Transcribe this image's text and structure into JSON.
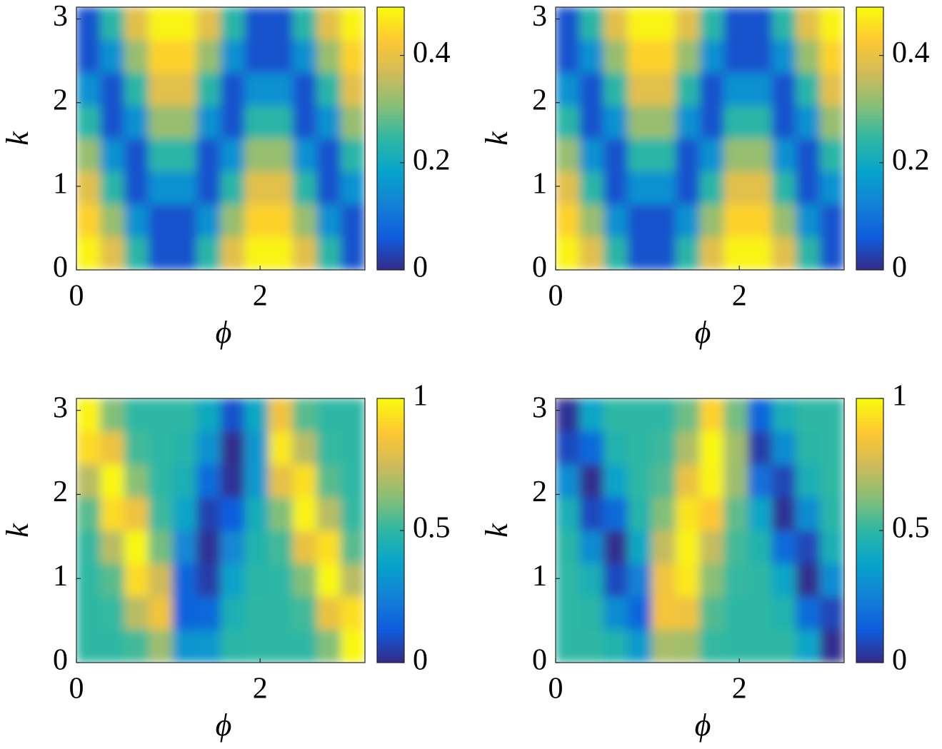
{
  "chart_data": [
    {
      "type": "heatmap",
      "xlabel": "ϕ",
      "ylabel": "k",
      "xlim": [
        0,
        3.1416
      ],
      "ylim": [
        0,
        3.1416
      ],
      "xticks": [
        0,
        2
      ],
      "yticks": [
        0,
        1,
        2,
        3
      ],
      "clim": [
        0,
        0.49
      ],
      "cticks": [
        0,
        0.2,
        0.4
      ],
      "colormap": [
        "#352a87",
        "#0f5cdd",
        "#1481d6",
        "#06a4ca",
        "#2eb7a4",
        "#87bf77",
        "#d1bb59",
        "#fec832",
        "#f9fb0e"
      ],
      "z": [
        [
          0.48,
          0.39,
          0.24,
          0.05,
          0.05,
          0.24,
          0.39,
          0.48,
          0.48,
          0.39,
          0.24,
          0.05
        ],
        [
          0.44,
          0.32,
          0.15,
          0.05,
          0.05,
          0.15,
          0.32,
          0.44,
          0.44,
          0.32,
          0.15,
          0.05
        ],
        [
          0.39,
          0.24,
          0.05,
          0.15,
          0.15,
          0.05,
          0.24,
          0.39,
          0.39,
          0.24,
          0.05,
          0.15
        ],
        [
          0.32,
          0.15,
          0.05,
          0.24,
          0.24,
          0.05,
          0.15,
          0.32,
          0.32,
          0.15,
          0.05,
          0.24
        ],
        [
          0.24,
          0.05,
          0.15,
          0.32,
          0.32,
          0.15,
          0.05,
          0.24,
          0.24,
          0.05,
          0.15,
          0.32
        ],
        [
          0.15,
          0.05,
          0.24,
          0.39,
          0.39,
          0.24,
          0.05,
          0.15,
          0.15,
          0.05,
          0.24,
          0.39
        ],
        [
          0.05,
          0.15,
          0.32,
          0.44,
          0.44,
          0.32,
          0.15,
          0.05,
          0.05,
          0.15,
          0.32,
          0.44
        ],
        [
          0.05,
          0.24,
          0.39,
          0.48,
          0.48,
          0.39,
          0.24,
          0.05,
          0.05,
          0.24,
          0.39,
          0.48
        ]
      ]
    },
    {
      "type": "heatmap",
      "xlabel": "ϕ",
      "ylabel": "k",
      "xlim": [
        0,
        3.1416
      ],
      "ylim": [
        0,
        3.1416
      ],
      "xticks": [
        0,
        2
      ],
      "yticks": [
        0,
        1,
        2,
        3
      ],
      "clim": [
        0,
        0.49
      ],
      "cticks": [
        0,
        0.2,
        0.4
      ],
      "colormap": [
        "#352a87",
        "#0f5cdd",
        "#1481d6",
        "#06a4ca",
        "#2eb7a4",
        "#87bf77",
        "#d1bb59",
        "#fec832",
        "#f9fb0e"
      ],
      "z": [
        [
          0.48,
          0.39,
          0.24,
          0.05,
          0.05,
          0.24,
          0.39,
          0.48,
          0.48,
          0.39,
          0.24,
          0.05
        ],
        [
          0.44,
          0.32,
          0.15,
          0.05,
          0.05,
          0.15,
          0.32,
          0.44,
          0.44,
          0.32,
          0.15,
          0.05
        ],
        [
          0.39,
          0.24,
          0.05,
          0.15,
          0.15,
          0.05,
          0.24,
          0.39,
          0.39,
          0.24,
          0.05,
          0.15
        ],
        [
          0.32,
          0.15,
          0.05,
          0.24,
          0.24,
          0.05,
          0.15,
          0.32,
          0.32,
          0.15,
          0.05,
          0.24
        ],
        [
          0.24,
          0.05,
          0.15,
          0.32,
          0.32,
          0.15,
          0.05,
          0.24,
          0.24,
          0.05,
          0.15,
          0.32
        ],
        [
          0.15,
          0.05,
          0.24,
          0.39,
          0.39,
          0.24,
          0.05,
          0.15,
          0.15,
          0.05,
          0.24,
          0.39
        ],
        [
          0.05,
          0.15,
          0.32,
          0.44,
          0.44,
          0.32,
          0.15,
          0.05,
          0.05,
          0.15,
          0.32,
          0.44
        ],
        [
          0.05,
          0.24,
          0.39,
          0.48,
          0.48,
          0.39,
          0.24,
          0.05,
          0.05,
          0.24,
          0.39,
          0.48
        ]
      ]
    },
    {
      "type": "heatmap",
      "xlabel": "ϕ",
      "ylabel": "k",
      "xlim": [
        0,
        3.1416
      ],
      "ylim": [
        0,
        3.1416
      ],
      "xticks": [
        0,
        2
      ],
      "yticks": [
        0,
        1,
        2,
        3
      ],
      "clim": [
        0,
        1
      ],
      "cticks": [
        0,
        0.5,
        1
      ],
      "colormap": [
        "#352a87",
        "#0f5cdd",
        "#1481d6",
        "#06a4ca",
        "#2eb7a4",
        "#87bf77",
        "#d1bb59",
        "#fec832",
        "#f9fb0e"
      ],
      "z": [
        [
          0.5,
          0.5,
          0.53,
          0.66,
          0.32,
          0.33,
          0.49,
          0.5,
          0.5,
          0.5,
          0.62,
          0.99
        ],
        [
          0.5,
          0.51,
          0.71,
          0.84,
          0.15,
          0.17,
          0.45,
          0.5,
          0.5,
          0.53,
          0.82,
          0.93
        ],
        [
          0.5,
          0.56,
          0.92,
          0.75,
          0.16,
          0.05,
          0.37,
          0.49,
          0.5,
          0.62,
          0.99,
          0.71
        ],
        [
          0.51,
          0.71,
          0.99,
          0.6,
          0.27,
          0.02,
          0.27,
          0.47,
          0.53,
          0.82,
          0.93,
          0.56
        ],
        [
          0.56,
          0.92,
          0.83,
          0.52,
          0.38,
          0.06,
          0.13,
          0.43,
          0.62,
          0.98,
          0.71,
          0.51
        ],
        [
          0.71,
          0.99,
          0.63,
          0.5,
          0.45,
          0.18,
          0.02,
          0.34,
          0.81,
          0.93,
          0.56,
          0.5
        ],
        [
          0.92,
          0.83,
          0.53,
          0.5,
          0.48,
          0.31,
          0.01,
          0.33,
          0.95,
          0.71,
          0.51,
          0.5
        ],
        [
          0.98,
          0.62,
          0.5,
          0.5,
          0.5,
          0.41,
          0.1,
          0.4,
          0.84,
          0.56,
          0.5,
          0.5
        ]
      ]
    },
    {
      "type": "heatmap",
      "xlabel": "ϕ",
      "ylabel": "k",
      "xlim": [
        0,
        3.1416
      ],
      "ylim": [
        0,
        3.1416
      ],
      "xticks": [
        0,
        2
      ],
      "yticks": [
        0,
        1,
        2,
        3
      ],
      "clim": [
        0,
        1
      ],
      "cticks": [
        0,
        0.5,
        1
      ],
      "colormap": [
        "#352a87",
        "#0f5cdd",
        "#1481d6",
        "#06a4ca",
        "#2eb7a4",
        "#87bf77",
        "#d1bb59",
        "#fec832",
        "#f9fb0e"
      ],
      "z": [
        [
          0.5,
          0.5,
          0.47,
          0.34,
          0.68,
          0.67,
          0.51,
          0.5,
          0.5,
          0.5,
          0.38,
          0.01
        ],
        [
          0.5,
          0.49,
          0.29,
          0.16,
          0.85,
          0.83,
          0.55,
          0.5,
          0.5,
          0.47,
          0.18,
          0.07
        ],
        [
          0.5,
          0.44,
          0.08,
          0.25,
          0.84,
          0.95,
          0.63,
          0.51,
          0.5,
          0.38,
          0.01,
          0.29
        ],
        [
          0.49,
          0.29,
          0.01,
          0.4,
          0.73,
          0.98,
          0.73,
          0.53,
          0.47,
          0.18,
          0.07,
          0.44
        ],
        [
          0.44,
          0.08,
          0.17,
          0.48,
          0.62,
          0.94,
          0.87,
          0.57,
          0.38,
          0.02,
          0.29,
          0.49
        ],
        [
          0.29,
          0.01,
          0.37,
          0.5,
          0.55,
          0.82,
          0.98,
          0.66,
          0.19,
          0.07,
          0.44,
          0.5
        ],
        [
          0.08,
          0.17,
          0.47,
          0.5,
          0.52,
          0.69,
          0.99,
          0.67,
          0.05,
          0.29,
          0.49,
          0.5
        ],
        [
          0.02,
          0.38,
          0.5,
          0.5,
          0.5,
          0.59,
          0.9,
          0.6,
          0.16,
          0.44,
          0.5,
          0.5
        ]
      ]
    }
  ]
}
